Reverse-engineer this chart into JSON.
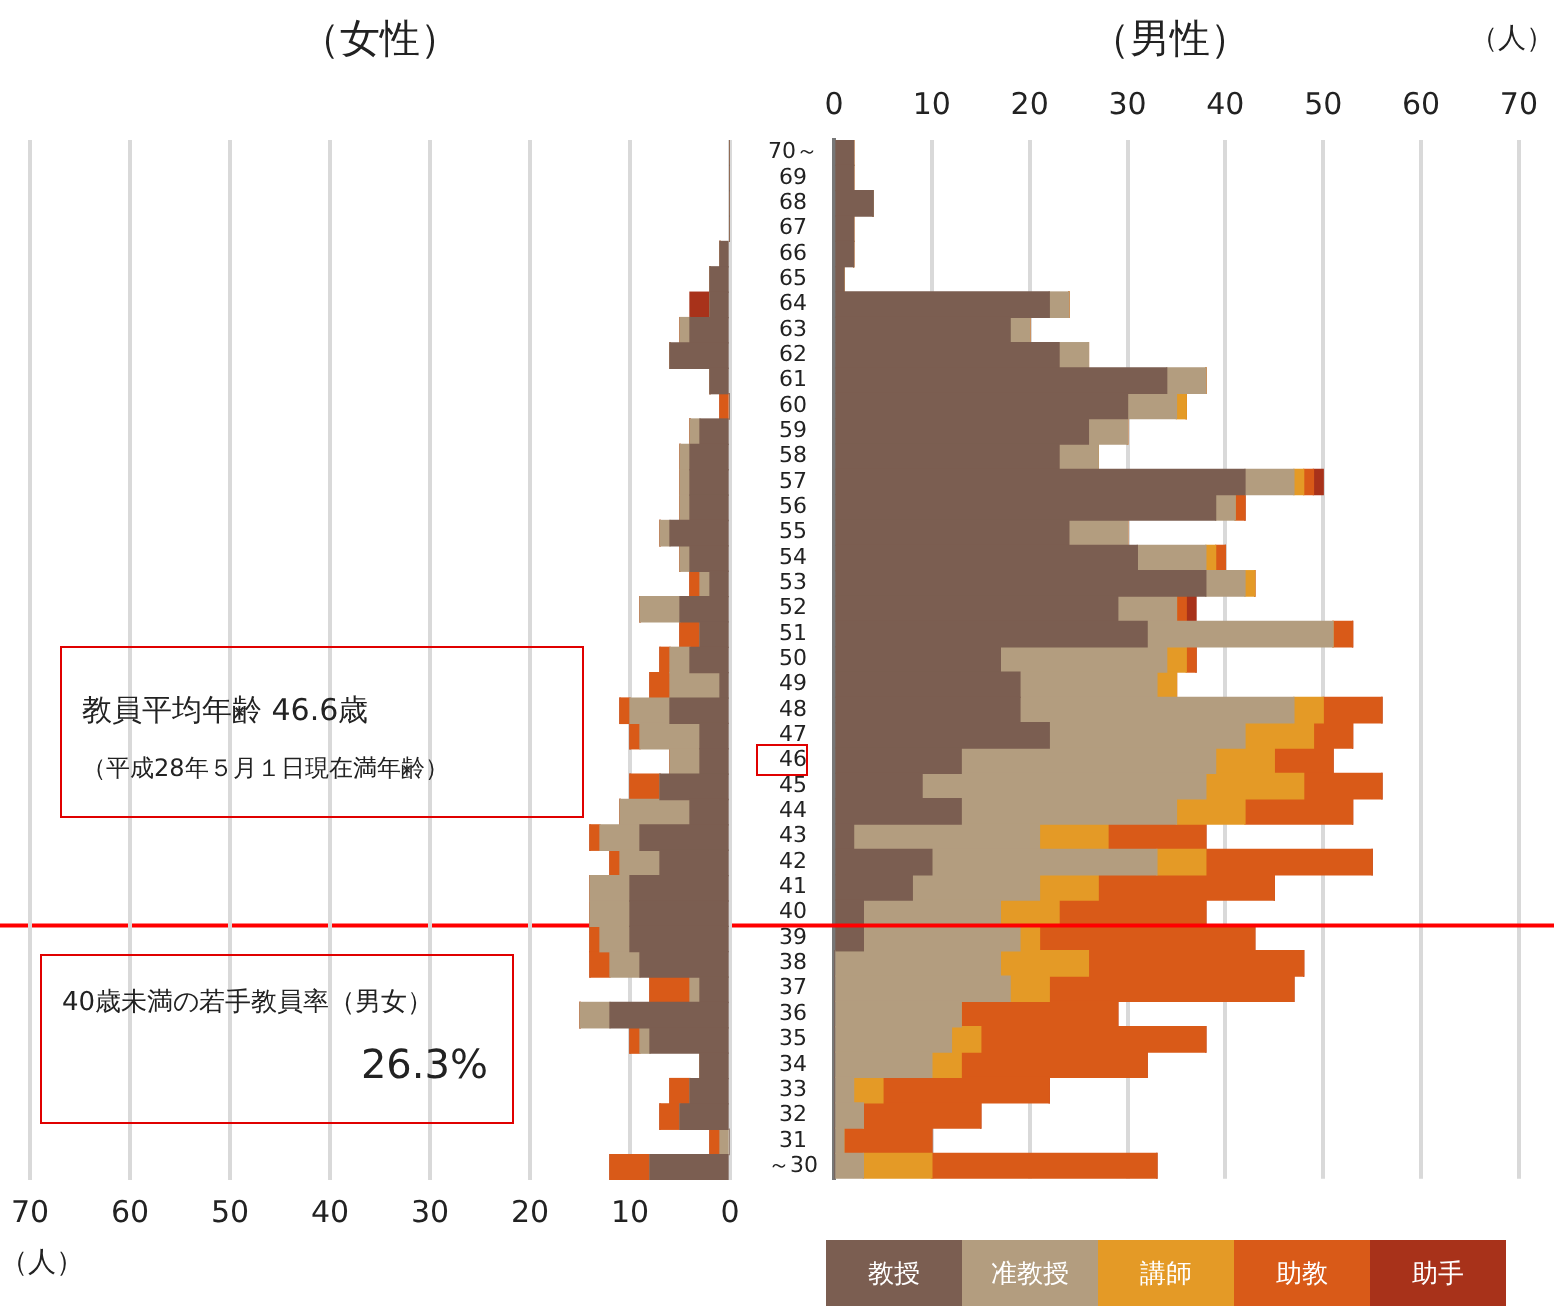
{
  "chart_data": [
    {
      "type": "bar",
      "title": "（女性）",
      "xlabel": "（人）",
      "orientation": "horizontal",
      "stacked": true,
      "categories": [
        null,
        null,
        null,
        null,
        null,
        null,
        null,
        null,
        null,
        null,
        null,
        null,
        null,
        null,
        null,
        null,
        null,
        null,
        null,
        null,
        null,
        null,
        null,
        null,
        null,
        null,
        null,
        null,
        null,
        null,
        null,
        null,
        null,
        null,
        null,
        null,
        null,
        null,
        null,
        null,
        null
      ],
      "series": [
        {
          "color": "#7b5e51",
          "values": [
            0,
            0,
            0,
            0,
            1,
            2,
            2,
            4,
            6,
            2,
            0,
            3,
            4,
            4,
            4,
            6,
            4,
            2,
            5,
            3,
            4,
            1,
            6,
            3,
            3,
            7,
            4,
            9,
            7,
            10,
            10,
            10,
            9,
            3,
            12,
            8,
            3,
            4,
            5,
            0,
            8
          ]
        },
        {
          "color": "#b39d7f",
          "values": [
            0,
            0,
            0,
            0,
            0,
            0,
            0,
            1,
            0,
            0,
            0,
            1,
            1,
            1,
            1,
            1,
            1,
            1,
            4,
            0,
            2,
            5,
            4,
            6,
            3,
            0,
            7,
            4,
            4,
            4,
            4,
            3,
            3,
            1,
            3,
            1,
            0,
            0,
            0,
            1,
            0
          ]
        },
        {
          "color": "#d95a18",
          "values": [
            0,
            0,
            0,
            0,
            0,
            0,
            0,
            0,
            0,
            0,
            1,
            0,
            0,
            0,
            0,
            0,
            0,
            1,
            0,
            2,
            1,
            2,
            1,
            1,
            0,
            3,
            0,
            1,
            1,
            0,
            0,
            1,
            2,
            4,
            0,
            1,
            0,
            2,
            2,
            1,
            4
          ]
        },
        {
          "color": "#a8321a",
          "values": [
            0,
            0,
            0,
            0,
            0,
            0,
            2,
            0,
            0,
            0,
            0,
            0,
            0,
            0,
            0,
            0,
            0,
            0,
            0,
            0,
            0,
            0,
            0,
            0,
            0,
            0,
            0,
            0,
            0,
            0,
            0,
            0,
            0,
            0,
            0,
            0,
            0,
            0,
            0,
            0,
            0
          ]
        }
      ],
      "xlim": [
        70,
        0
      ],
      "xticks": [
        0,
        10,
        20,
        30,
        40,
        50,
        60,
        70
      ],
      "grid": "x",
      "tick_labels": "x",
      "annotations": [
        "教員平均年齢 46.6歳",
        "（平成28年５月１日現在満年齢）",
        "40歳未満の若手教員率（男女）",
        "26.3%"
      ]
    },
    {
      "type": "bar",
      "title": "（男性）",
      "xlabel": "（人）",
      "orientation": "horizontal",
      "stacked": true,
      "categories": [
        "70～",
        "69",
        "68",
        "67",
        "66",
        "65",
        "64",
        "63",
        "62",
        "61",
        "60",
        "59",
        "58",
        "57",
        "56",
        "55",
        "54",
        "53",
        "52",
        "51",
        "50",
        "49",
        "48",
        "47",
        "46",
        "45",
        "44",
        "43",
        "42",
        "41",
        "40",
        "39",
        "38",
        "37",
        "36",
        "35",
        "34",
        "33",
        "32",
        "31",
        "～30"
      ],
      "series": [
        {
          "name": "教授",
          "color": "#7b5e51",
          "values": [
            2,
            2,
            4,
            2,
            2,
            1,
            22,
            18,
            23,
            34,
            30,
            26,
            23,
            42,
            39,
            24,
            31,
            38,
            29,
            32,
            17,
            19,
            19,
            22,
            13,
            9,
            13,
            2,
            10,
            8,
            3,
            3,
            0,
            0,
            0,
            0,
            0,
            0,
            0,
            0,
            0
          ]
        },
        {
          "name": "准教授",
          "color": "#b39d7f",
          "values": [
            0,
            0,
            0,
            0,
            0,
            0,
            2,
            2,
            3,
            4,
            5,
            4,
            4,
            5,
            2,
            6,
            7,
            4,
            6,
            19,
            17,
            14,
            28,
            20,
            26,
            29,
            22,
            19,
            23,
            13,
            14,
            16,
            17,
            18,
            13,
            12,
            10,
            2,
            3,
            1,
            3
          ]
        },
        {
          "name": "講師",
          "color": "#e49a26",
          "values": [
            0,
            0,
            0,
            0,
            0,
            0,
            0,
            0,
            0,
            0,
            1,
            0,
            0,
            1,
            0,
            0,
            1,
            1,
            0,
            0,
            2,
            2,
            3,
            7,
            6,
            10,
            7,
            7,
            5,
            6,
            6,
            2,
            9,
            4,
            0,
            3,
            3,
            3,
            0,
            0,
            7
          ]
        },
        {
          "name": "助教",
          "color": "#d95a18",
          "values": [
            0,
            0,
            0,
            0,
            0,
            0,
            0,
            0,
            0,
            0,
            0,
            0,
            0,
            1,
            1,
            0,
            1,
            0,
            1,
            2,
            1,
            0,
            6,
            4,
            6,
            8,
            11,
            10,
            17,
            18,
            15,
            22,
            22,
            25,
            16,
            23,
            19,
            17,
            12,
            9,
            23
          ]
        },
        {
          "name": "助手",
          "color": "#a8321a",
          "values": [
            0,
            0,
            0,
            0,
            0,
            0,
            0,
            0,
            0,
            0,
            0,
            0,
            0,
            1,
            0,
            0,
            0,
            0,
            1,
            0,
            0,
            0,
            0,
            0,
            0,
            0,
            0,
            0,
            0,
            0,
            0,
            0,
            0,
            0,
            0,
            0,
            0,
            0,
            0,
            0,
            0
          ]
        }
      ],
      "xlim": [
        0,
        70
      ],
      "xticks": [
        0,
        10,
        20,
        30,
        40,
        50,
        60,
        70
      ],
      "grid": "x",
      "legend": "bottom right",
      "ref_lines": [
        {
          "axis": "y",
          "value": "39",
          "color": "#ff0000"
        }
      ]
    }
  ]
}
